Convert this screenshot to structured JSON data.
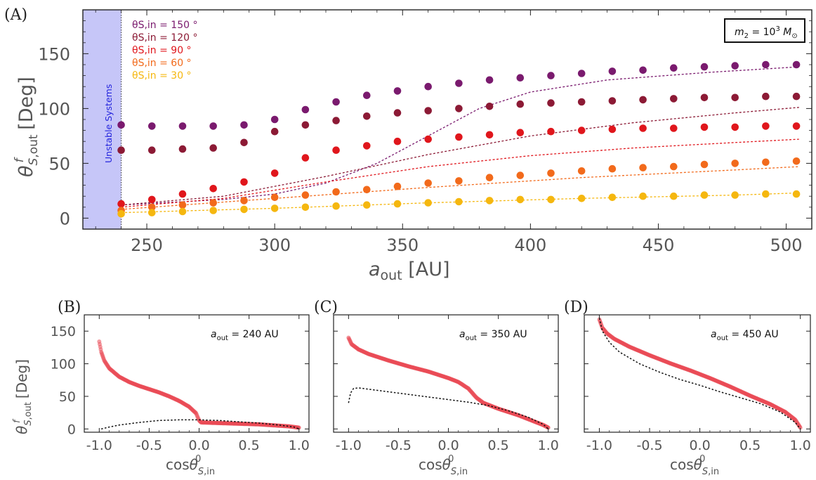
{
  "chart_data": [
    {
      "panel": "(A)",
      "type": "scatter",
      "xlabel": "a_out [AU]",
      "ylabel": "θ^f_S,out [Deg]",
      "xlim": [
        225,
        510
      ],
      "ylim": [
        -10,
        190
      ],
      "xticks": [
        250,
        300,
        350,
        400,
        450,
        500
      ],
      "yticks": [
        0,
        50,
        100,
        150
      ],
      "annotation": "m2 = 10^3 M⊙",
      "shaded_region_label": "Unstable Systems",
      "shaded_region_x": [
        225,
        240
      ],
      "legend_placement": "top-left",
      "x": [
        240,
        252,
        264,
        276,
        288,
        300,
        312,
        324,
        336,
        348,
        360,
        372,
        384,
        396,
        408,
        420,
        432,
        444,
        456,
        468,
        480,
        492,
        504
      ],
      "series": [
        {
          "name": "θS,in = 150 °",
          "color": "#7a1a6e",
          "values": [
            85,
            84,
            84,
            84,
            85,
            90,
            99,
            106,
            112,
            116,
            120,
            123,
            126,
            128,
            130,
            132,
            134,
            135,
            137,
            138,
            139,
            140,
            140
          ],
          "fit": [
            [
              240,
              12
            ],
            [
              280,
              17
            ],
            [
              300,
              22
            ],
            [
              320,
              32
            ],
            [
              340,
              50
            ],
            [
              360,
              75
            ],
            [
              380,
              100
            ],
            [
              400,
              115
            ],
            [
              430,
              126
            ],
            [
              470,
              133
            ],
            [
              505,
              138
            ]
          ]
        },
        {
          "name": "θS,in = 120 °",
          "color": "#8c1a35",
          "values": [
            62,
            62,
            63,
            64,
            69,
            79,
            85,
            89,
            93,
            96,
            98,
            100,
            102,
            104,
            105,
            106,
            107,
            108,
            109,
            110,
            110,
            111,
            111
          ],
          "fit": [
            [
              240,
              12
            ],
            [
              280,
              20
            ],
            [
              320,
              38
            ],
            [
              360,
              58
            ],
            [
              400,
              75
            ],
            [
              440,
              87
            ],
            [
              480,
              96
            ],
            [
              505,
              101
            ]
          ]
        },
        {
          "name": "θS,in = 90 °",
          "color": "#e0161c",
          "values": [
            13,
            17,
            22,
            27,
            33,
            41,
            55,
            62,
            66,
            70,
            72,
            74,
            76,
            78,
            79,
            80,
            81,
            82,
            82,
            83,
            83,
            84,
            84
          ],
          "fit": [
            [
              240,
              10
            ],
            [
              280,
              18
            ],
            [
              320,
              33
            ],
            [
              360,
              47
            ],
            [
              400,
              57
            ],
            [
              440,
              64
            ],
            [
              480,
              69
            ],
            [
              505,
              72
            ]
          ]
        },
        {
          "name": "θS,in = 60 °",
          "color": "#f26a1b",
          "values": [
            7,
            10,
            12,
            14,
            16,
            19,
            21,
            24,
            26,
            29,
            32,
            34,
            37,
            39,
            41,
            43,
            45,
            46,
            47,
            49,
            50,
            51,
            52
          ],
          "fit": [
            [
              240,
              8
            ],
            [
              300,
              18
            ],
            [
              360,
              28
            ],
            [
              420,
              37
            ],
            [
              480,
              44
            ],
            [
              505,
              47
            ]
          ]
        },
        {
          "name": "θS,in = 30 °",
          "color": "#f5b70f",
          "values": [
            4,
            5,
            6,
            7,
            8,
            9,
            10,
            11,
            12,
            13,
            14,
            15,
            16,
            17,
            17,
            18,
            19,
            20,
            20,
            21,
            21,
            22,
            22
          ],
          "fit": [
            [
              240,
              5
            ],
            [
              300,
              9
            ],
            [
              360,
              14
            ],
            [
              420,
              18
            ],
            [
              480,
              21
            ],
            [
              505,
              23
            ]
          ]
        }
      ]
    },
    {
      "panel": "(B)",
      "type": "scatter",
      "annotation": "a_out = 240 AU",
      "xlabel": "cosθ0_S,in",
      "ylabel": "θ^f_S,out [Deg]",
      "xlim": [
        -1.15,
        1.1
      ],
      "ylim": [
        -5,
        175
      ],
      "xticks": [
        -1.0,
        -0.5,
        0.0,
        0.5,
        1.0
      ],
      "yticks": [
        0,
        50,
        100,
        150
      ],
      "simulation": [
        [
          -1.0,
          134
        ],
        [
          -0.98,
          118
        ],
        [
          -0.95,
          105
        ],
        [
          -0.9,
          93
        ],
        [
          -0.8,
          80
        ],
        [
          -0.7,
          72
        ],
        [
          -0.6,
          66
        ],
        [
          -0.5,
          61
        ],
        [
          -0.4,
          56
        ],
        [
          -0.3,
          50
        ],
        [
          -0.2,
          43
        ],
        [
          -0.1,
          34
        ],
        [
          -0.03,
          24
        ],
        [
          0.0,
          13
        ],
        [
          0.02,
          10
        ],
        [
          0.2,
          9
        ],
        [
          0.4,
          8
        ],
        [
          0.6,
          7
        ],
        [
          0.8,
          5
        ],
        [
          0.9,
          4
        ],
        [
          1.0,
          2
        ]
      ],
      "theory": [
        [
          -0.98,
          0
        ],
        [
          -0.9,
          3
        ],
        [
          -0.8,
          6
        ],
        [
          -0.6,
          10
        ],
        [
          -0.4,
          13
        ],
        [
          -0.2,
          14
        ],
        [
          0.0,
          14
        ],
        [
          0.2,
          13
        ],
        [
          0.4,
          11
        ],
        [
          0.6,
          9
        ],
        [
          0.8,
          6
        ],
        [
          0.95,
          3
        ],
        [
          1.0,
          0
        ]
      ]
    },
    {
      "panel": "(C)",
      "type": "scatter",
      "annotation": "a_out = 350 AU",
      "xlabel": "cosθ0_S,in",
      "xlim": [
        -1.15,
        1.1
      ],
      "ylim": [
        -5,
        175
      ],
      "xticks": [
        -1.0,
        -0.5,
        0.0,
        0.5,
        1.0
      ],
      "simulation": [
        [
          -1.0,
          140
        ],
        [
          -0.97,
          130
        ],
        [
          -0.9,
          122
        ],
        [
          -0.8,
          115
        ],
        [
          -0.6,
          105
        ],
        [
          -0.4,
          96
        ],
        [
          -0.2,
          88
        ],
        [
          0.0,
          78
        ],
        [
          0.1,
          72
        ],
        [
          0.2,
          62
        ],
        [
          0.28,
          48
        ],
        [
          0.35,
          40
        ],
        [
          0.5,
          31
        ],
        [
          0.7,
          21
        ],
        [
          0.85,
          12
        ],
        [
          0.95,
          6
        ],
        [
          1.0,
          2
        ]
      ],
      "theory": [
        [
          -1.0,
          40
        ],
        [
          -0.98,
          55
        ],
        [
          -0.95,
          62
        ],
        [
          -0.9,
          63
        ],
        [
          -0.8,
          61
        ],
        [
          -0.6,
          57
        ],
        [
          -0.4,
          53
        ],
        [
          -0.2,
          49
        ],
        [
          0.0,
          45
        ],
        [
          0.2,
          41
        ],
        [
          0.4,
          36
        ],
        [
          0.6,
          28
        ],
        [
          0.8,
          18
        ],
        [
          0.95,
          7
        ],
        [
          1.0,
          0
        ]
      ]
    },
    {
      "panel": "(D)",
      "type": "scatter",
      "annotation": "a_out = 450 AU",
      "xlabel": "cosθ0_S,in",
      "xlim": [
        -1.15,
        1.1
      ],
      "ylim": [
        -5,
        175
      ],
      "xticks": [
        -1.0,
        -0.5,
        0.0,
        0.5,
        1.0
      ],
      "simulation": [
        [
          -1.0,
          168
        ],
        [
          -0.97,
          155
        ],
        [
          -0.92,
          146
        ],
        [
          -0.85,
          138
        ],
        [
          -0.7,
          126
        ],
        [
          -0.5,
          113
        ],
        [
          -0.3,
          101
        ],
        [
          -0.1,
          90
        ],
        [
          0.1,
          78
        ],
        [
          0.3,
          65
        ],
        [
          0.5,
          51
        ],
        [
          0.7,
          38
        ],
        [
          0.85,
          26
        ],
        [
          0.95,
          14
        ],
        [
          1.0,
          2
        ]
      ],
      "theory": [
        [
          -1.0,
          170
        ],
        [
          -0.97,
          150
        ],
        [
          -0.9,
          133
        ],
        [
          -0.8,
          118
        ],
        [
          -0.6,
          100
        ],
        [
          -0.4,
          87
        ],
        [
          -0.2,
          76
        ],
        [
          0.0,
          67
        ],
        [
          0.2,
          57
        ],
        [
          0.4,
          48
        ],
        [
          0.6,
          39
        ],
        [
          0.8,
          26
        ],
        [
          0.95,
          10
        ],
        [
          1.0,
          0
        ]
      ]
    }
  ]
}
